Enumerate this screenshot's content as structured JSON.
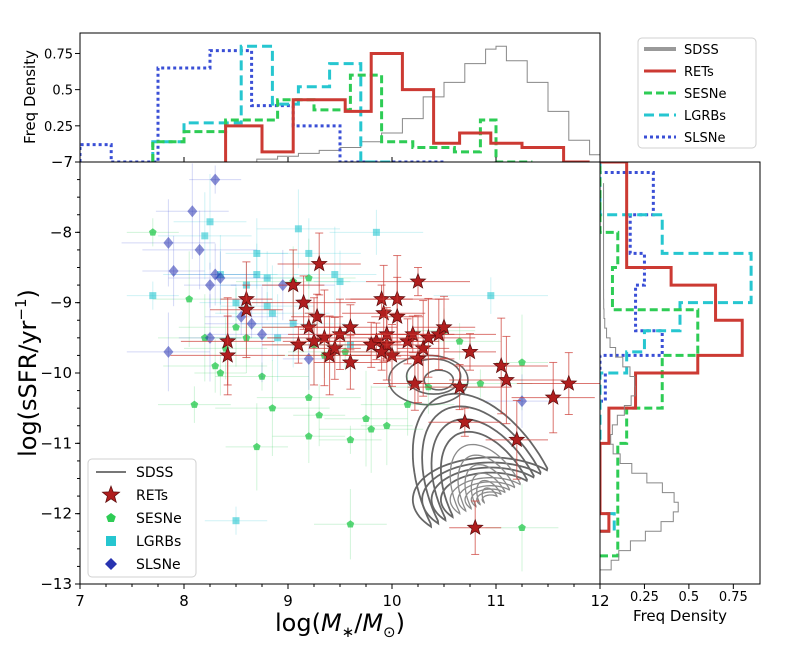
{
  "chart_data": {
    "type": "scatter",
    "main": {
      "xlabel_prefix": "log(",
      "xlabel_var": "M",
      "xlabel_sub": "∗",
      "xlabel_div": "/",
      "xlabel_var2": "M",
      "xlabel_sub2": "⊙",
      "xlabel_suffix": ")",
      "ylabel_prefix": "log(sSFR/yr",
      "ylabel_sup": "−1",
      "ylabel_suffix": ")",
      "xlim": [
        7,
        12
      ],
      "ylim": [
        -13,
        -7
      ],
      "xticks": [
        "7",
        "8",
        "9",
        "10",
        "11",
        "12"
      ],
      "yticks": [
        "−13",
        "−12",
        "−11",
        "−10",
        "−9",
        "−8"
      ],
      "legend_position": "lower-left",
      "legend": [
        "SDSS",
        "RETs",
        "SESNe",
        "LGRBs",
        "SLSNe"
      ]
    },
    "top_hist": {
      "ylabel": "Freq Density",
      "ylim": [
        0,
        0.85
      ],
      "yticks": [
        "0.25",
        "0.5",
        "0.75"
      ],
      "extra_tick": "−7"
    },
    "right_hist": {
      "xlabel": "Freq Density",
      "xlim": [
        0,
        0.9
      ],
      "xticks": [
        "0.25",
        "0.5",
        "0.75"
      ]
    },
    "hist_legend": [
      "SDSS",
      "RETs",
      "SESNe",
      "LGRBs",
      "SLSNe"
    ],
    "colors": {
      "SDSS": "#777777",
      "RETs": "#cc3a33",
      "RETs_marker": "#b01e1e",
      "SESNe": "#2ecc55",
      "LGRBs": "#26c6d0",
      "SLSNe": "#3a4fd6",
      "SLSNe_marker": "#2833b0"
    },
    "series": [
      {
        "name": "RETs",
        "points": [
          [
            8.6,
            -8.95
          ],
          [
            8.6,
            -9.1
          ],
          [
            8.42,
            -9.55
          ],
          [
            8.42,
            -9.75
          ],
          [
            9.05,
            -8.75
          ],
          [
            9.3,
            -8.45
          ],
          [
            9.15,
            -9.0
          ],
          [
            9.28,
            -9.2
          ],
          [
            9.1,
            -9.6
          ],
          [
            9.2,
            -9.35
          ],
          [
            9.35,
            -9.5
          ],
          [
            9.25,
            -9.55
          ],
          [
            9.4,
            -9.75
          ],
          [
            9.5,
            -9.45
          ],
          [
            9.45,
            -9.65
          ],
          [
            9.6,
            -9.85
          ],
          [
            9.6,
            -9.35
          ],
          [
            9.85,
            -9.55
          ],
          [
            9.9,
            -8.95
          ],
          [
            9.92,
            -9.15
          ],
          [
            10.05,
            -8.95
          ],
          [
            10.05,
            -9.2
          ],
          [
            9.95,
            -9.6
          ],
          [
            10.0,
            -9.75
          ],
          [
            9.95,
            -9.45
          ],
          [
            10.15,
            -9.55
          ],
          [
            10.2,
            -9.45
          ],
          [
            10.25,
            -8.7
          ],
          [
            10.3,
            -9.65
          ],
          [
            10.25,
            -9.8
          ],
          [
            10.35,
            -9.5
          ],
          [
            10.45,
            -9.45
          ],
          [
            10.5,
            -9.35
          ],
          [
            10.22,
            -10.15
          ],
          [
            10.65,
            -10.2
          ],
          [
            10.75,
            -9.7
          ],
          [
            10.7,
            -10.7
          ],
          [
            11.05,
            -9.9
          ],
          [
            11.1,
            -10.1
          ],
          [
            11.2,
            -10.95
          ],
          [
            11.55,
            -10.35
          ],
          [
            11.7,
            -10.15
          ],
          [
            10.8,
            -12.2
          ],
          [
            9.8,
            -9.6
          ],
          [
            9.9,
            -9.7
          ]
        ]
      },
      {
        "name": "SESNe",
        "points": [
          [
            7.7,
            -8.0
          ],
          [
            8.05,
            -8.95
          ],
          [
            8.2,
            -9.5
          ],
          [
            8.5,
            -9.35
          ],
          [
            8.6,
            -9.5
          ],
          [
            8.4,
            -9.65
          ],
          [
            8.3,
            -9.9
          ],
          [
            8.35,
            -10.0
          ],
          [
            8.1,
            -10.45
          ],
          [
            8.75,
            -10.05
          ],
          [
            8.85,
            -10.5
          ],
          [
            8.7,
            -11.05
          ],
          [
            9.25,
            -9.6
          ],
          [
            9.2,
            -10.35
          ],
          [
            9.3,
            -10.6
          ],
          [
            9.2,
            -10.9
          ],
          [
            9.35,
            -9.75
          ],
          [
            9.55,
            -9.7
          ],
          [
            9.6,
            -10.95
          ],
          [
            9.75,
            -10.65
          ],
          [
            9.8,
            -10.8
          ],
          [
            9.95,
            -10.75
          ],
          [
            9.6,
            -12.15
          ],
          [
            10.15,
            -10.45
          ],
          [
            10.35,
            -10.2
          ],
          [
            10.5,
            -9.4
          ],
          [
            10.65,
            -9.55
          ],
          [
            10.85,
            -10.15
          ],
          [
            11.25,
            -9.85
          ],
          [
            11.25,
            -12.2
          ],
          [
            9.2,
            -8.65
          ],
          [
            9.05,
            -8.7
          ]
        ]
      },
      {
        "name": "LGRBs",
        "points": [
          [
            7.7,
            -8.9
          ],
          [
            8.25,
            -7.85
          ],
          [
            8.2,
            -8.05
          ],
          [
            8.35,
            -8.6
          ],
          [
            8.7,
            -8.3
          ],
          [
            8.7,
            -8.6
          ],
          [
            8.8,
            -8.65
          ],
          [
            8.6,
            -8.75
          ],
          [
            8.5,
            -9.0
          ],
          [
            8.8,
            -9.05
          ],
          [
            8.85,
            -9.15
          ],
          [
            8.9,
            -9.5
          ],
          [
            9.1,
            -7.95
          ],
          [
            9.2,
            -8.3
          ],
          [
            9.5,
            -8.7
          ],
          [
            9.6,
            -9.6
          ],
          [
            9.85,
            -8.0
          ],
          [
            10.95,
            -8.9
          ],
          [
            8.5,
            -12.1
          ],
          [
            9.45,
            -8.6
          ],
          [
            9.05,
            -9.3
          ]
        ]
      },
      {
        "name": "SLSNe",
        "points": [
          [
            8.3,
            -7.25
          ],
          [
            8.08,
            -7.7
          ],
          [
            7.85,
            -8.15
          ],
          [
            8.15,
            -8.25
          ],
          [
            7.9,
            -8.55
          ],
          [
            8.3,
            -8.6
          ],
          [
            8.35,
            -8.65
          ],
          [
            8.25,
            -8.75
          ],
          [
            8.55,
            -9.2
          ],
          [
            8.65,
            -9.3
          ],
          [
            8.75,
            -9.45
          ],
          [
            8.25,
            -9.5
          ],
          [
            7.85,
            -9.7
          ],
          [
            8.95,
            -8.75
          ],
          [
            9.2,
            -9.8
          ],
          [
            11.25,
            -10.4
          ]
        ]
      }
    ],
    "sdss_contour_center": [
      10.95,
      -11.8
    ],
    "top_histograms": [
      {
        "name": "RETs",
        "edges": [
          8.4,
          8.75,
          9.05,
          9.55,
          9.8,
          10.1,
          10.4,
          10.65,
          10.95,
          11.25,
          11.65,
          11.9
        ],
        "values": [
          0.25,
          0.07,
          0.43,
          0.35,
          0.75,
          0.5,
          0.13,
          0.2,
          0.13,
          0.1,
          0.0
        ]
      },
      {
        "name": "SESNe",
        "edges": [
          7.7,
          8.0,
          8.4,
          8.9,
          9.25,
          9.6,
          9.9,
          10.2,
          10.6,
          10.85,
          11.0,
          11.35
        ],
        "values": [
          0.14,
          0.21,
          0.29,
          0.43,
          0.36,
          0.6,
          0.14,
          0.1,
          0.07,
          0.29,
          0.0
        ]
      },
      {
        "name": "LGRBs",
        "edges": [
          7.7,
          8.0,
          8.55,
          8.85,
          9.1,
          9.4,
          9.7,
          10.0
        ],
        "values": [
          0.14,
          0.27,
          0.8,
          0.4,
          0.52,
          0.68,
          0.0
        ]
      },
      {
        "name": "SLSNe",
        "edges": [
          7.0,
          7.3,
          7.75,
          8.25,
          8.65,
          9.05,
          9.5,
          9.8,
          10.0,
          10.5
        ],
        "values": [
          0.12,
          0.0,
          0.65,
          0.77,
          0.39,
          0.25,
          0.0,
          0.0,
          0.0
        ]
      },
      {
        "name": "SDSS",
        "edges": [
          8.7,
          8.9,
          9.1,
          9.3,
          9.5,
          9.7,
          9.9,
          10.1,
          10.3,
          10.5,
          10.7,
          10.9,
          11.0,
          11.1,
          11.3,
          11.5,
          11.7,
          11.9,
          12.0
        ],
        "values": [
          0.02,
          0.04,
          0.06,
          0.08,
          0.1,
          0.14,
          0.2,
          0.3,
          0.45,
          0.55,
          0.68,
          0.78,
          0.8,
          0.7,
          0.55,
          0.35,
          0.15,
          0.05
        ]
      }
    ],
    "right_histograms": [
      {
        "name": "RETs",
        "edges": [
          -12.25,
          -12.0,
          -11.0,
          -10.5,
          -10.0,
          -9.75,
          -9.25,
          -8.75,
          -8.5,
          -7.0
        ],
        "values": [
          0.05,
          0.0,
          0.05,
          0.2,
          0.55,
          0.8,
          0.65,
          0.4,
          0.15
        ]
      },
      {
        "name": "SESNe",
        "edges": [
          -12.6,
          -11.0,
          -10.5,
          -9.75,
          -9.1,
          -8.5,
          -8.0,
          -7.0
        ],
        "values": [
          0.1,
          0.15,
          0.35,
          0.55,
          0.07,
          0.1,
          0.0
        ]
      },
      {
        "name": "LGRBs",
        "edges": [
          -12.25,
          -12.0,
          -11.0,
          -10.0,
          -9.7,
          -9.4,
          -9.0,
          -8.3,
          -7.75,
          -7.0
        ],
        "values": [
          0.08,
          0.0,
          0.0,
          0.15,
          0.25,
          0.45,
          0.85,
          0.35,
          0.0
        ]
      },
      {
        "name": "SLSNe",
        "edges": [
          -10.4,
          -10.0,
          -9.75,
          -9.4,
          -8.75,
          -8.3,
          -7.75,
          -7.15
        ],
        "values": [
          0.03,
          0.0,
          0.35,
          0.2,
          0.25,
          0.17,
          0.3
        ]
      }
    ]
  }
}
